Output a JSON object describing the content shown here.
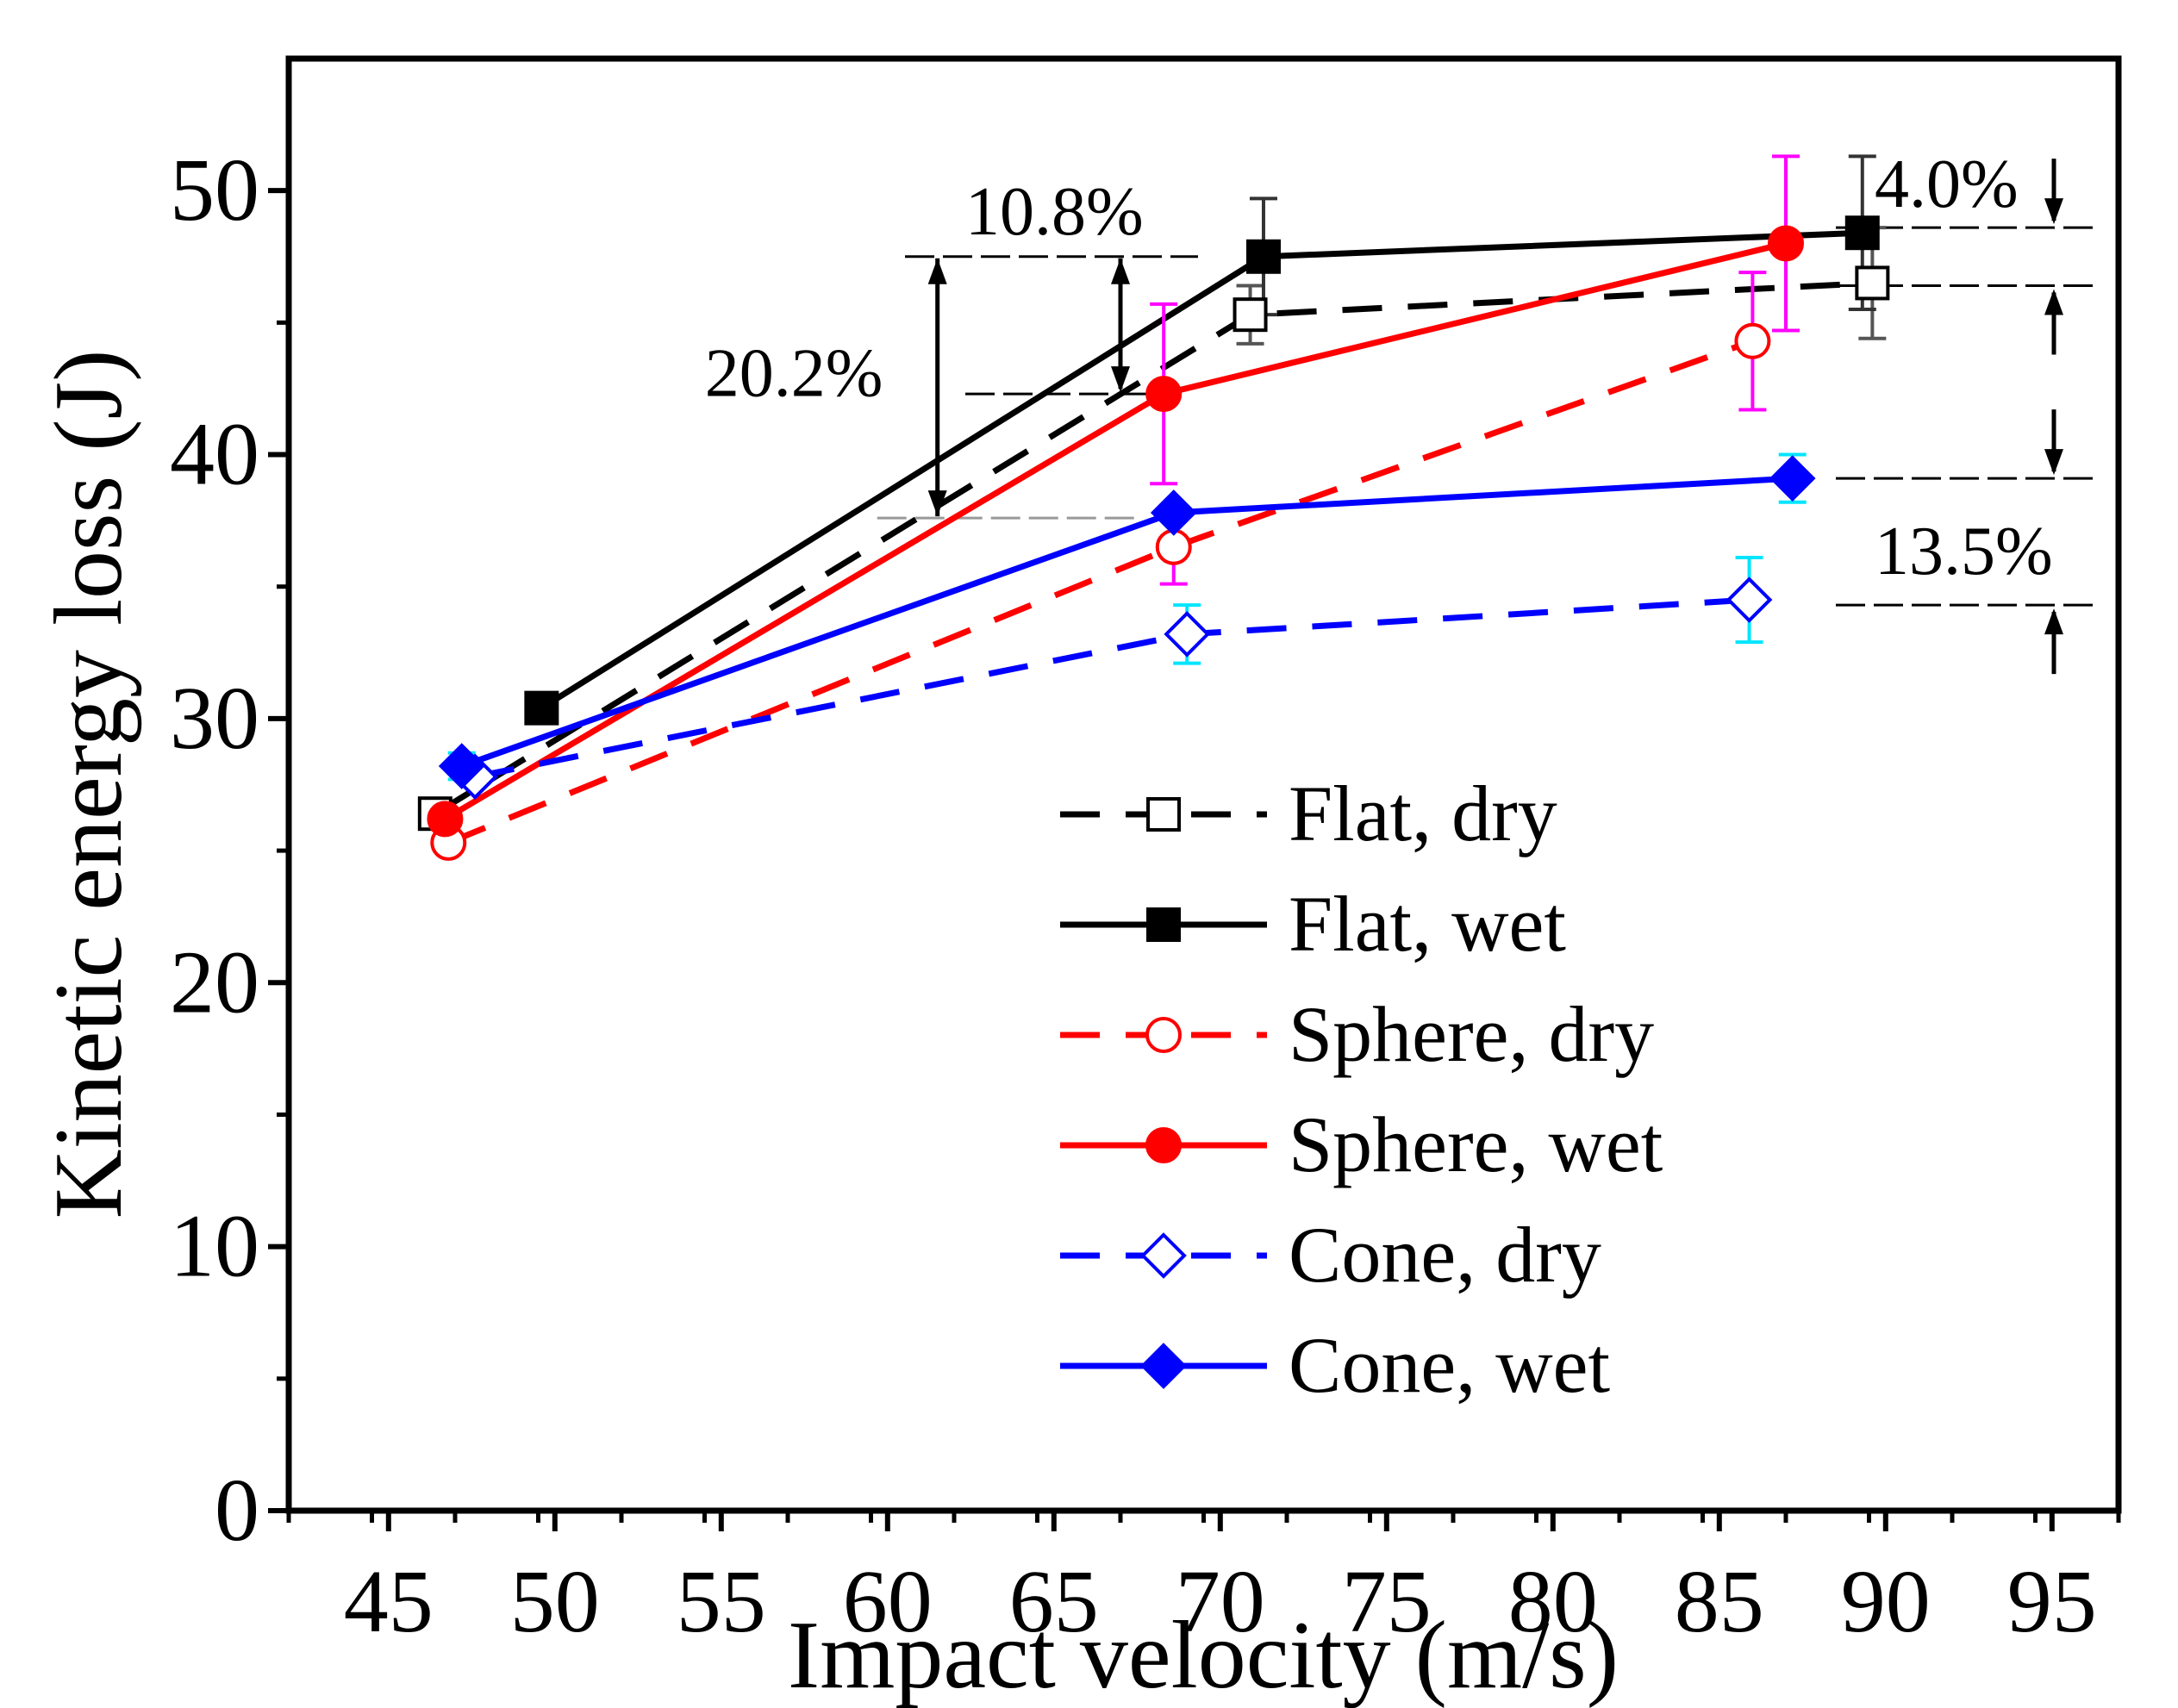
{
  "chart_data": {
    "type": "line",
    "title": "",
    "xlabel": "Impact velocity (m/s)",
    "ylabel": "Kinetic energy loss (J)",
    "xlim": [
      42,
      97
    ],
    "ylim": [
      0,
      55
    ],
    "xticks": [
      45,
      50,
      55,
      60,
      65,
      70,
      75,
      80,
      85,
      90,
      95
    ],
    "yticks": [
      0,
      10,
      20,
      30,
      40,
      50
    ],
    "legend_position": "lower-right",
    "series": [
      {
        "name": "Flat, dry",
        "color": "#000000",
        "line": "dashed",
        "marker": "square",
        "filled": false,
        "points": [
          {
            "x": 46.4,
            "y": 26.4,
            "err": 0.0
          },
          {
            "x": 70.9,
            "y": 45.3,
            "err": 1.1
          },
          {
            "x": 89.6,
            "y": 46.5,
            "err": 2.1
          }
        ]
      },
      {
        "name": "Flat, wet",
        "color": "#000000",
        "line": "solid",
        "marker": "square",
        "filled": true,
        "points": [
          {
            "x": 49.6,
            "y": 30.4,
            "err": 0.0
          },
          {
            "x": 71.3,
            "y": 47.5,
            "err": 2.2
          },
          {
            "x": 89.3,
            "y": 48.4,
            "err": 2.9
          }
        ]
      },
      {
        "name": "Sphere, dry",
        "color": "#ff0000",
        "line": "dashed",
        "marker": "circle",
        "filled": false,
        "points": [
          {
            "x": 46.8,
            "y": 25.3,
            "err": 0.0
          },
          {
            "x": 68.6,
            "y": 36.5,
            "err": 1.4
          },
          {
            "x": 86.0,
            "y": 44.3,
            "err": 2.6
          }
        ],
        "error_color": "#ff00ff"
      },
      {
        "name": "Sphere, wet",
        "color": "#ff0000",
        "line": "solid",
        "marker": "circle",
        "filled": true,
        "points": [
          {
            "x": 46.7,
            "y": 26.2,
            "err": 0.0
          },
          {
            "x": 68.3,
            "y": 42.3,
            "err": 3.4
          },
          {
            "x": 87.0,
            "y": 48.0,
            "err": 3.3
          }
        ],
        "error_color": "#ff00ff"
      },
      {
        "name": "Cone, dry",
        "color": "#0000ff",
        "line": "dashed",
        "marker": "diamond",
        "filled": false,
        "points": [
          {
            "x": 47.6,
            "y": 27.8,
            "err": 0.0
          },
          {
            "x": 69.0,
            "y": 33.2,
            "err": 1.1
          },
          {
            "x": 85.9,
            "y": 34.5,
            "err": 1.6
          }
        ],
        "error_color": "#00e5ff"
      },
      {
        "name": "Cone, wet",
        "color": "#0000ff",
        "line": "solid",
        "marker": "diamond",
        "filled": true,
        "points": [
          {
            "x": 47.2,
            "y": 28.2,
            "err": 0.5
          },
          {
            "x": 68.6,
            "y": 37.8,
            "err": 0.0
          },
          {
            "x": 87.2,
            "y": 39.1,
            "err": 0.9
          }
        ],
        "error_color": "#00e5ff"
      }
    ],
    "annotations": [
      {
        "label": "10.8%",
        "kind": "arrow-down",
        "x": 67.0,
        "from_y": 47.5,
        "to_y": 42.3
      },
      {
        "label": "20.2%",
        "kind": "double-arrow",
        "x": 61.5,
        "from_y": 47.5,
        "to_y": 37.6
      },
      {
        "label": "4.0%",
        "kind": "gap-right",
        "upper_y": 48.6,
        "lower_y": 46.4
      },
      {
        "label": "13.5%",
        "kind": "gap-right",
        "upper_y": 39.1,
        "lower_y": 34.3
      }
    ]
  }
}
